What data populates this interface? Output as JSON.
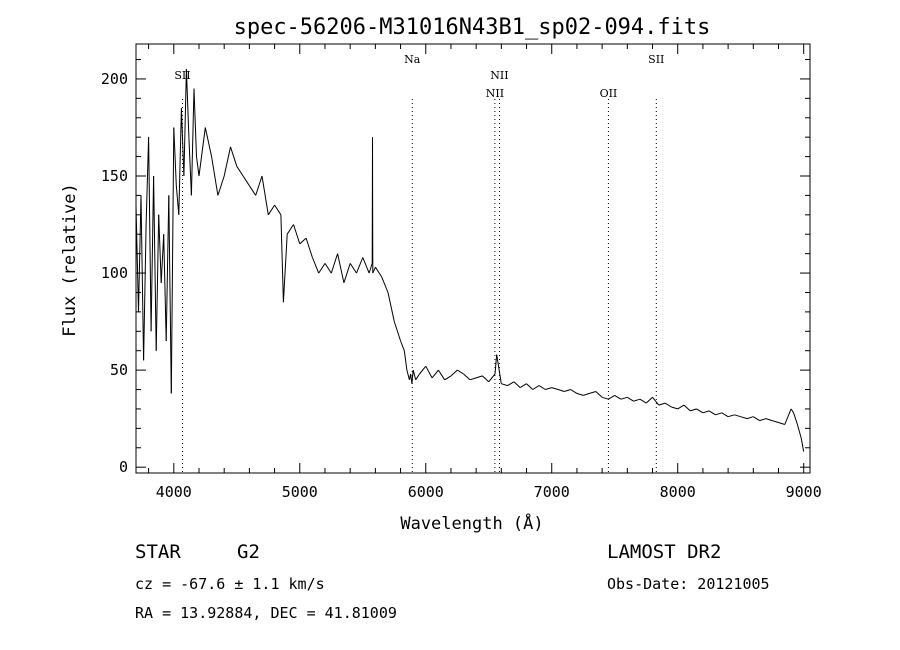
{
  "chart_data": {
    "type": "line",
    "title": "spec-56206-M31016N43B1_sp02-094.fits",
    "xlabel": "Wavelength (Å)",
    "ylabel": "Flux (relative)",
    "xlim": [
      3700,
      9050
    ],
    "ylim": [
      -3,
      218
    ],
    "xticks": [
      4000,
      5000,
      6000,
      7000,
      8000,
      9000
    ],
    "yticks": [
      0,
      50,
      100,
      150,
      200
    ],
    "grid": false,
    "series": [
      {
        "x": [
          3700,
          3720,
          3740,
          3760,
          3780,
          3800,
          3820,
          3840,
          3860,
          3880,
          3900,
          3920,
          3940,
          3960,
          3980,
          4000,
          4020,
          4040,
          4060,
          4080,
          4100,
          4120,
          4140,
          4160,
          4180,
          4200,
          4250,
          4300,
          4350,
          4400,
          4450,
          4500,
          4550,
          4600,
          4650,
          4700,
          4750,
          4800,
          4850,
          4870,
          4900,
          4950,
          5000,
          5050,
          5100,
          5150,
          5200,
          5250,
          5300,
          5350,
          5400,
          5450,
          5500,
          5550,
          5575,
          5577,
          5580,
          5600,
          5650,
          5700,
          5750,
          5800,
          5830,
          5850,
          5870,
          5880,
          5890,
          5900,
          5920,
          5950,
          6000,
          6050,
          6100,
          6150,
          6200,
          6250,
          6300,
          6350,
          6400,
          6450,
          6500,
          6550,
          6563,
          6600,
          6650,
          6700,
          6750,
          6800,
          6850,
          6900,
          6950,
          7000,
          7050,
          7100,
          7150,
          7200,
          7250,
          7300,
          7350,
          7400,
          7450,
          7500,
          7550,
          7600,
          7650,
          7700,
          7750,
          7800,
          7850,
          7900,
          7950,
          8000,
          8050,
          8100,
          8150,
          8200,
          8250,
          8300,
          8350,
          8400,
          8450,
          8500,
          8550,
          8600,
          8650,
          8700,
          8750,
          8800,
          8850,
          8900,
          8920,
          8950,
          8980,
          9000
        ],
        "y": [
          135,
          80,
          140,
          55,
          125,
          170,
          70,
          150,
          60,
          130,
          95,
          120,
          65,
          140,
          38,
          175,
          145,
          130,
          185,
          150,
          205,
          170,
          140,
          195,
          160,
          150,
          175,
          160,
          140,
          150,
          165,
          155,
          150,
          145,
          140,
          150,
          130,
          135,
          130,
          85,
          120,
          125,
          115,
          118,
          108,
          100,
          105,
          100,
          110,
          95,
          105,
          100,
          108,
          100,
          105,
          170,
          100,
          103,
          98,
          90,
          75,
          65,
          60,
          50,
          45,
          48,
          43,
          50,
          45,
          48,
          52,
          46,
          50,
          45,
          47,
          50,
          48,
          45,
          46,
          47,
          44,
          48,
          58,
          43,
          42,
          44,
          41,
          43,
          40,
          42,
          40,
          41,
          40,
          39,
          40,
          38,
          37,
          38,
          39,
          36,
          35,
          37,
          35,
          36,
          34,
          35,
          33,
          36,
          32,
          33,
          31,
          30,
          32,
          29,
          30,
          28,
          29,
          27,
          28,
          26,
          27,
          26,
          25,
          26,
          24,
          25,
          24,
          23,
          22,
          30,
          28,
          22,
          15,
          8
        ]
      }
    ],
    "lines": [
      {
        "label": "SII",
        "x": 4069,
        "row": 1
      },
      {
        "label": "Na",
        "x": 5893,
        "row": 0
      },
      {
        "label": "NII",
        "x": 6549,
        "row": 2
      },
      {
        "label": "NII",
        "x": 6585,
        "row": 1
      },
      {
        "label": "OII",
        "x": 7450,
        "row": 2
      },
      {
        "label": "SII",
        "x": 7830,
        "row": 0
      }
    ]
  },
  "info": {
    "object_type": "STAR",
    "subclass": "G2",
    "survey": "LAMOST DR2",
    "velocity": "cz = -67.6 ± 1.1 km/s",
    "obs_date": "Obs-Date: 20121005",
    "coords": "RA =  13.92884, DEC =  41.81009"
  }
}
